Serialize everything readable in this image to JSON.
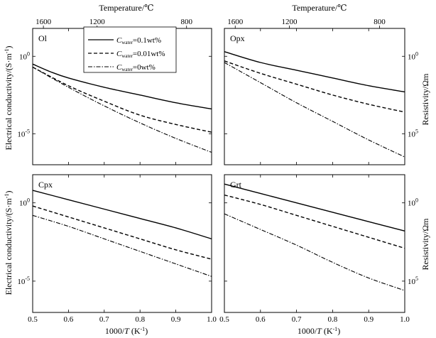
{
  "chart_data": {
    "type": "line",
    "top_axis_title": "Temperature/℃",
    "top_ticks": [
      {
        "label": "1600",
        "x": 0.53
      },
      {
        "label": "1200",
        "x": 0.68
      },
      {
        "label": "800",
        "x": 0.93
      }
    ],
    "xlabel": "1000/T (K-1)",
    "xlabel_parts": {
      "pre": "1000/",
      "T": "T",
      "mid": " (K",
      "sup": "-1",
      "post": ")"
    },
    "ylabel": "Electrical conductivity/(S·m-1)",
    "ylabel_parts": {
      "main": "Electrical conductivity/(S·m",
      "sup": "-1",
      "post": ")"
    },
    "y2label": "Resistivity/Ωm",
    "xlim": [
      0.5,
      1.0
    ],
    "xticks": [
      "0.5",
      "0.6",
      "0.7",
      "0.8",
      "0.9",
      "1.0"
    ],
    "ylim_log10": [
      -7,
      1.8
    ],
    "y_ticks_left": [
      {
        "base": "10",
        "exp": "0",
        "log": 0
      },
      {
        "base": "10",
        "exp": "-5",
        "log": -5
      }
    ],
    "y_ticks_right": [
      {
        "base": "10",
        "exp": "0",
        "log": 0
      },
      {
        "base": "10",
        "exp": "5",
        "log": -5
      }
    ],
    "legend": [
      {
        "symbol": "C",
        "sub": "water",
        "text": "=0.1wt%",
        "dash": "solid"
      },
      {
        "symbol": "C",
        "sub": "water",
        "text": "=0.01wt%",
        "dash": "dashed"
      },
      {
        "symbol": "C",
        "sub": "water",
        "text": "=0wt%",
        "dash": "dashdot"
      }
    ],
    "panels": [
      {
        "label": "Ol",
        "series": [
          {
            "name": "C_water=0.1wt%",
            "dash": "solid",
            "x": [
              0.5,
              0.55,
              0.6,
              0.7,
              0.8,
              0.9,
              1.0
            ],
            "log10_sigma": [
              -0.5,
              -1.0,
              -1.4,
              -2.0,
              -2.5,
              -3.0,
              -3.4
            ]
          },
          {
            "name": "C_water=0.01wt%",
            "dash": "dashed",
            "x": [
              0.5,
              0.6,
              0.7,
              0.8,
              0.9,
              1.0
            ],
            "log10_sigma": [
              -0.7,
              -1.9,
              -2.9,
              -3.8,
              -4.4,
              -4.9
            ]
          },
          {
            "name": "C_water=0wt%",
            "dash": "dashdot",
            "x": [
              0.5,
              0.6,
              0.7,
              0.8,
              0.9,
              1.0
            ],
            "log10_sigma": [
              -0.7,
              -2.0,
              -3.2,
              -4.3,
              -5.3,
              -6.2
            ]
          }
        ]
      },
      {
        "label": "Opx",
        "series": [
          {
            "name": "C_water=0.1wt%",
            "dash": "solid",
            "x": [
              0.5,
              0.6,
              0.7,
              0.8,
              0.9,
              1.0
            ],
            "log10_sigma": [
              0.3,
              -0.4,
              -0.9,
              -1.4,
              -1.9,
              -2.3
            ]
          },
          {
            "name": "C_water=0.01wt%",
            "dash": "dashed",
            "x": [
              0.5,
              0.6,
              0.7,
              0.8,
              0.9,
              1.0
            ],
            "log10_sigma": [
              -0.3,
              -1.1,
              -1.8,
              -2.5,
              -3.1,
              -3.6
            ]
          },
          {
            "name": "C_water=0wt%",
            "dash": "dashdot",
            "x": [
              0.5,
              0.6,
              0.7,
              0.8,
              0.9,
              1.0
            ],
            "log10_sigma": [
              -0.4,
              -1.7,
              -3.0,
              -4.2,
              -5.4,
              -6.5
            ]
          }
        ]
      },
      {
        "label": "Cpx",
        "series": [
          {
            "name": "C_water=0.1wt%",
            "dash": "solid",
            "x": [
              0.5,
              0.6,
              0.7,
              0.8,
              0.9,
              1.0
            ],
            "log10_sigma": [
              0.8,
              0.2,
              -0.4,
              -1.0,
              -1.6,
              -2.3
            ]
          },
          {
            "name": "C_water=0.01wt%",
            "dash": "dashed",
            "x": [
              0.5,
              0.6,
              0.7,
              0.8,
              0.9,
              1.0
            ],
            "log10_sigma": [
              -0.2,
              -0.9,
              -1.6,
              -2.3,
              -3.0,
              -3.6
            ]
          },
          {
            "name": "C_water=0wt%",
            "dash": "dashdot",
            "x": [
              0.5,
              0.6,
              0.7,
              0.8,
              0.9,
              1.0
            ],
            "log10_sigma": [
              -0.8,
              -1.5,
              -2.3,
              -3.1,
              -3.9,
              -4.7
            ]
          }
        ]
      },
      {
        "label": "Grt",
        "series": [
          {
            "name": "C_water=0.1wt%",
            "dash": "solid",
            "x": [
              0.5,
              0.6,
              0.7,
              0.8,
              0.9,
              1.0
            ],
            "log10_sigma": [
              1.2,
              0.6,
              0.0,
              -0.6,
              -1.2,
              -1.8
            ]
          },
          {
            "name": "C_water=0.01wt%",
            "dash": "dashed",
            "x": [
              0.5,
              0.6,
              0.7,
              0.8,
              0.9,
              1.0
            ],
            "log10_sigma": [
              0.5,
              -0.1,
              -0.8,
              -1.5,
              -2.2,
              -2.9
            ]
          },
          {
            "name": "C_water=0wt%",
            "dash": "dashdot",
            "x": [
              0.5,
              0.6,
              0.7,
              0.8,
              0.9,
              1.0
            ],
            "log10_sigma": [
              -0.7,
              -1.7,
              -2.7,
              -3.8,
              -4.8,
              -5.6
            ]
          }
        ]
      }
    ]
  }
}
